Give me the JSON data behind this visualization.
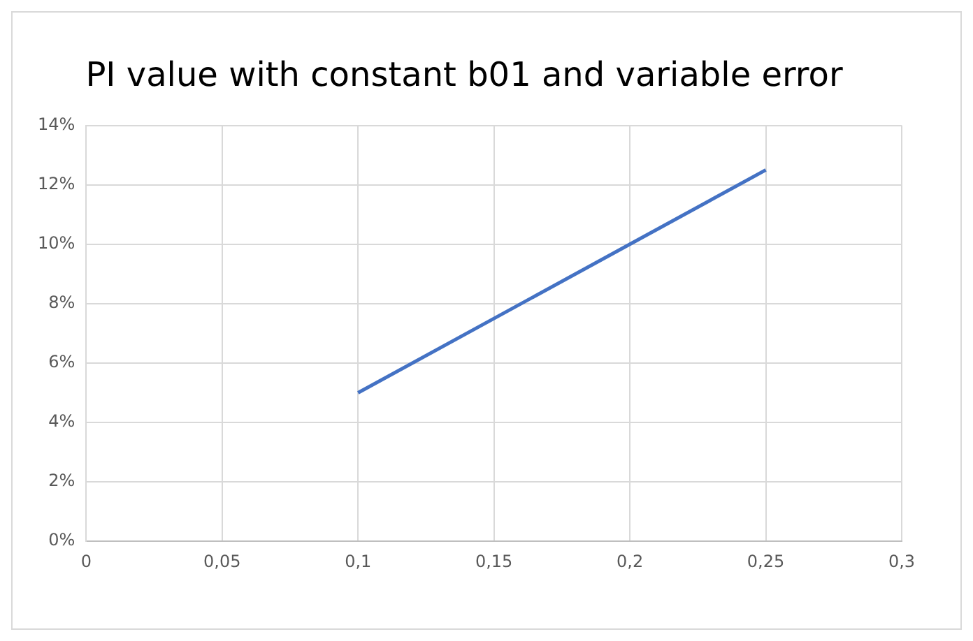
{
  "chart_data": {
    "type": "line",
    "title": "PI value with constant b01 and variable error",
    "x": [
      0.1,
      0.15,
      0.2,
      0.25
    ],
    "series": [
      {
        "color": "#4472c4",
        "values": [
          5,
          7.5,
          10,
          12.5
        ]
      }
    ],
    "xlim": [
      0,
      0.3
    ],
    "xticks": [
      0,
      {
        "value": 0.05,
        "label": "0,05"
      },
      {
        "value": 0.1,
        "label": "0,1"
      },
      {
        "value": 0.15,
        "label": "0,15"
      },
      {
        "value": 0.2,
        "label": "0,2"
      },
      {
        "value": 0.25,
        "label": "0,25"
      },
      {
        "value": 0.3,
        "label": "0,3"
      }
    ],
    "ylim": [
      0,
      14
    ],
    "yticks": [
      {
        "value": 0,
        "label": "0%"
      },
      {
        "value": 2,
        "label": "2%"
      },
      {
        "value": 4,
        "label": "4%"
      },
      {
        "value": 6,
        "label": "6%"
      },
      {
        "value": 8,
        "label": "8%"
      },
      {
        "value": 10,
        "label": "10%"
      },
      {
        "value": 12,
        "label": "12%"
      },
      {
        "value": 14,
        "label": "14%"
      }
    ],
    "grid": true,
    "marker": "none",
    "line_style": "solid",
    "legend": false
  }
}
